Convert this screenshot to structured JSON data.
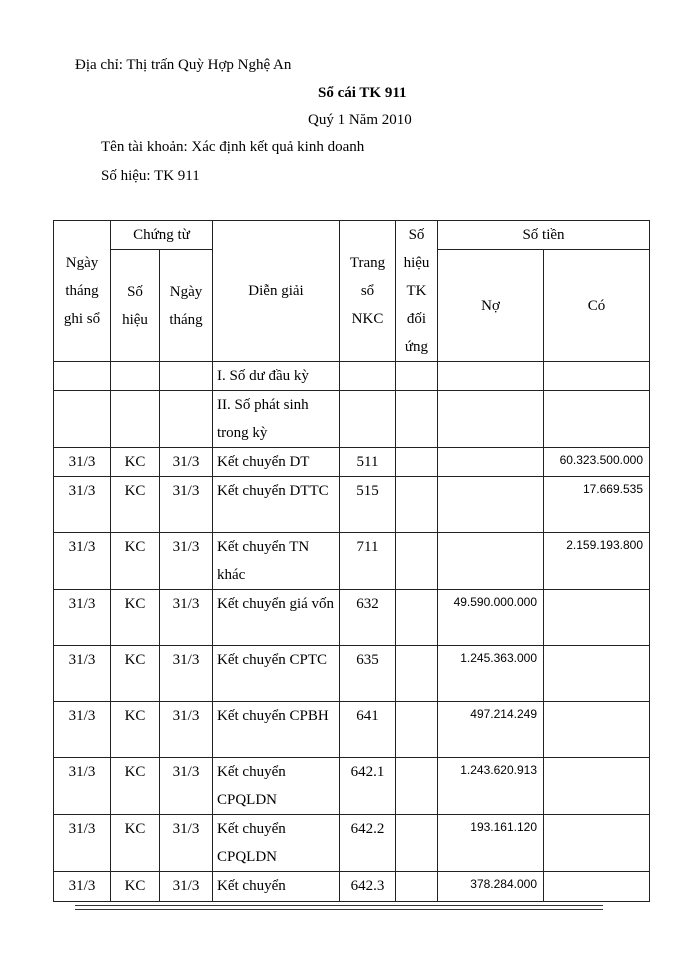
{
  "header": {
    "address": "Địa chỉ: Thị trấn Quỳ Hợp Nghệ An",
    "title": "Sổ cái TK 911",
    "period": "Quý 1 Năm 2010",
    "account_name": "Tên tài khoản: Xác định kết quả kinh  doanh",
    "account_number": "Số hiệu:  TK 911"
  },
  "table": {
    "headers": {
      "date": "Ngày tháng ghi sổ",
      "voucher": "Chứng từ",
      "voucher_no": "Số hiệu",
      "voucher_date": "Ngày tháng",
      "description": "Diễn giải",
      "page": "Trang sổ NKC",
      "contra": "Số hiệu TK đối ứng",
      "amount": "Số tiền",
      "debit": "Nợ",
      "credit": "Có"
    },
    "section_rows": [
      "I. Số dư đầu kỳ",
      "II. Số phát sinh trong kỳ"
    ],
    "rows": [
      {
        "date": "31/3",
        "no": "KC",
        "vdate": "31/3",
        "desc": "Kết chuyển DT",
        "page": "511",
        "contra": "",
        "debit": "",
        "credit": "60.323.500.000"
      },
      {
        "date": "31/3",
        "no": "KC",
        "vdate": "31/3",
        "desc": "Kết chuyển DTTC",
        "page": "515",
        "contra": "",
        "debit": "",
        "credit": "17.669.535"
      },
      {
        "date": "31/3",
        "no": "KC",
        "vdate": "31/3",
        "desc": "Kết chuyển TN khác",
        "page": "711",
        "contra": "",
        "debit": "",
        "credit": "2.159.193.800"
      },
      {
        "date": "31/3",
        "no": "KC",
        "vdate": "31/3",
        "desc": "Kết chuyển giá vốn",
        "page": "632",
        "contra": "",
        "debit": "49.590.000.000",
        "credit": ""
      },
      {
        "date": "31/3",
        "no": "KC",
        "vdate": "31/3",
        "desc": "Kết chuyển CPTC",
        "page": "635",
        "contra": "",
        "debit": "1.245.363.000",
        "credit": ""
      },
      {
        "date": "31/3",
        "no": "KC",
        "vdate": "31/3",
        "desc": "Kết chuyển CPBH",
        "page": "641",
        "contra": "",
        "debit": "497.214.249",
        "credit": ""
      },
      {
        "date": "31/3",
        "no": "KC",
        "vdate": "31/3",
        "desc": "Kết chuyển CPQLDN",
        "page": "642.1",
        "contra": "",
        "debit": "1.243.620.913",
        "credit": ""
      },
      {
        "date": "31/3",
        "no": "KC",
        "vdate": "31/3",
        "desc": "Kết chuyển CPQLDN",
        "page": "642.2",
        "contra": "",
        "debit": "193.161.120",
        "credit": ""
      },
      {
        "date": "31/3",
        "no": "KC",
        "vdate": "31/3",
        "desc": "Kết chuyển",
        "page": "642.3",
        "contra": "",
        "debit": "378.284.000",
        "credit": ""
      }
    ]
  }
}
